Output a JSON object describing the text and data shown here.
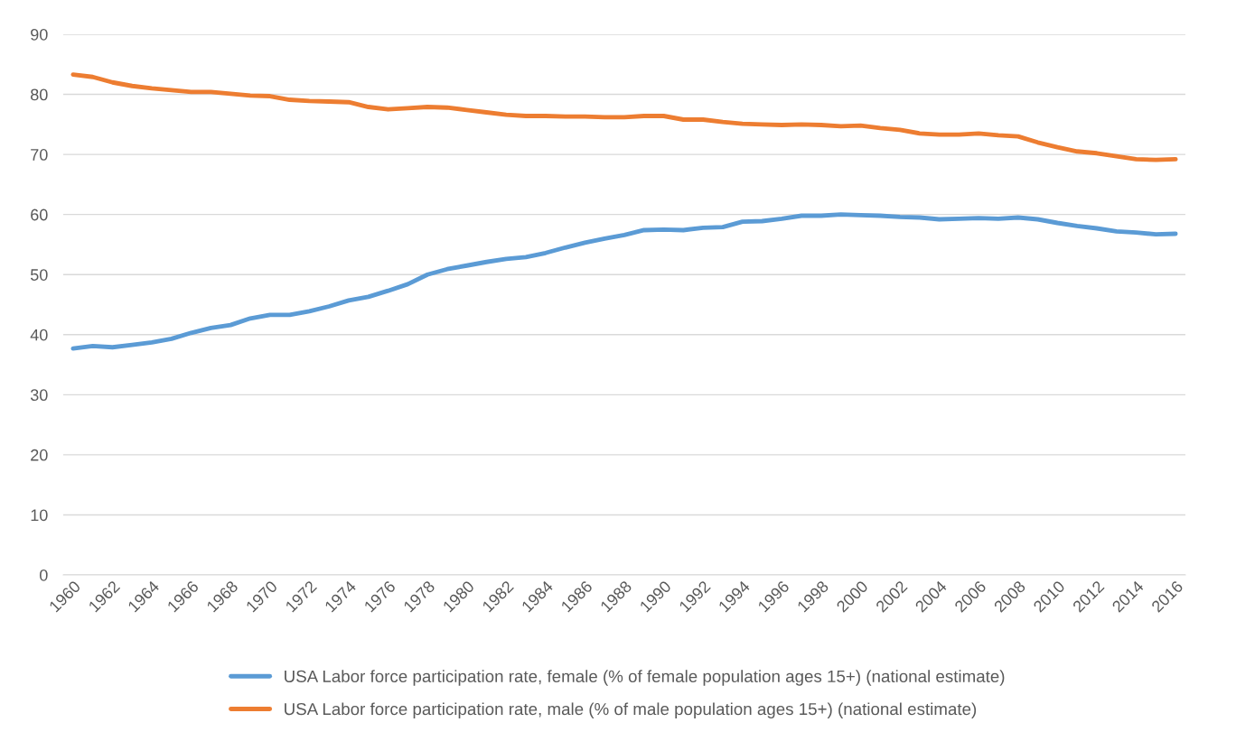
{
  "chart_data": {
    "type": "line",
    "categories": [
      "1960",
      null,
      "1962",
      null,
      "1964",
      null,
      "1966",
      null,
      "1968",
      null,
      "1970",
      null,
      "1972",
      null,
      "1974",
      null,
      "1976",
      null,
      "1978",
      null,
      "1980",
      null,
      "1982",
      null,
      "1984",
      null,
      "1986",
      null,
      "1988",
      null,
      "1990",
      null,
      "1992",
      null,
      "1994",
      null,
      "1996",
      null,
      "1998",
      null,
      "2000",
      null,
      "2002",
      null,
      "2004",
      null,
      "2006",
      null,
      "2008",
      null,
      "2010",
      null,
      "2012",
      null,
      "2014",
      null,
      "2016"
    ],
    "series": [
      {
        "name": "USA Labor force participation rate, female (% of female population ages 15+) (national estimate)",
        "color": "#5b9bd5",
        "values": [
          37.7,
          38.1,
          37.9,
          38.3,
          38.7,
          39.3,
          40.3,
          41.1,
          41.6,
          42.7,
          43.3,
          43.3,
          43.9,
          44.7,
          45.7,
          46.3,
          47.3,
          48.4,
          50.0,
          50.9,
          51.5,
          52.1,
          52.6,
          52.9,
          53.6,
          54.5,
          55.3,
          56.0,
          56.6,
          57.4,
          57.5,
          57.4,
          57.8,
          57.9,
          58.8,
          58.9,
          59.3,
          59.8,
          59.8,
          60.0,
          59.9,
          59.8,
          59.6,
          59.5,
          59.2,
          59.3,
          59.4,
          59.3,
          59.5,
          59.2,
          58.6,
          58.1,
          57.7,
          57.2,
          57.0,
          56.7,
          56.8
        ]
      },
      {
        "name": "USA Labor force participation rate, male (% of male population ages 15+) (national estimate)",
        "color": "#ed7d31",
        "values": [
          83.3,
          82.9,
          82.0,
          81.4,
          81.0,
          80.7,
          80.4,
          80.4,
          80.1,
          79.8,
          79.7,
          79.1,
          78.9,
          78.8,
          78.7,
          77.9,
          77.5,
          77.7,
          77.9,
          77.8,
          77.4,
          77.0,
          76.6,
          76.4,
          76.4,
          76.3,
          76.3,
          76.2,
          76.2,
          76.4,
          76.4,
          75.8,
          75.8,
          75.4,
          75.1,
          75.0,
          74.9,
          75.0,
          74.9,
          74.7,
          74.8,
          74.4,
          74.1,
          73.5,
          73.3,
          73.3,
          73.5,
          73.2,
          73.0,
          72.0,
          71.2,
          70.5,
          70.2,
          69.7,
          69.2,
          69.1,
          69.2
        ]
      }
    ],
    "ylim": [
      0,
      90
    ],
    "yticks": [
      0,
      10,
      20,
      30,
      40,
      50,
      60,
      70,
      80,
      90
    ],
    "grid": "y",
    "legend": "bottom",
    "line_style": "solid",
    "marker": "none"
  }
}
